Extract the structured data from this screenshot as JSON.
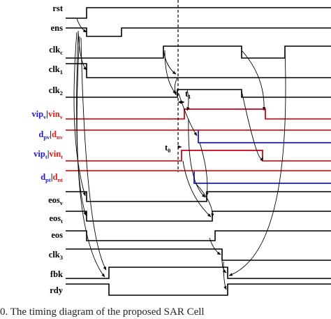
{
  "signals": [
    {
      "id": "rst",
      "label": [
        {
          "t": "rst",
          "c": "#000000"
        }
      ]
    },
    {
      "id": "ens",
      "label": [
        {
          "t": "ens",
          "c": "#000000"
        }
      ]
    },
    {
      "id": "clkc",
      "label": [
        {
          "t": "clk",
          "c": "#000000"
        },
        {
          "t": "c",
          "c": "#000000",
          "sub": true
        }
      ]
    },
    {
      "id": "clk1",
      "label": [
        {
          "t": "clk",
          "c": "#000000"
        },
        {
          "t": "1",
          "c": "#000000",
          "sub": true
        }
      ]
    },
    {
      "id": "clk2",
      "label": [
        {
          "t": "clk",
          "c": "#000000"
        },
        {
          "t": "2",
          "c": "#000000",
          "sub": true
        }
      ]
    },
    {
      "id": "vipv",
      "label": [
        {
          "t": "vip",
          "c": "#1a1adb"
        },
        {
          "t": "v",
          "c": "#1a1adb",
          "sub": true
        },
        {
          "t": "|",
          "c": "#000000"
        },
        {
          "t": "vin",
          "c": "#e01a1a"
        },
        {
          "t": "v",
          "c": "#e01a1a",
          "sub": true
        }
      ]
    },
    {
      "id": "dpv",
      "label": [
        {
          "t": "d",
          "c": "#1a1adb"
        },
        {
          "t": "pv",
          "c": "#1a1adb",
          "sub": true
        },
        {
          "t": "|",
          "c": "#000000"
        },
        {
          "t": "d",
          "c": "#e01a1a"
        },
        {
          "t": "nv",
          "c": "#e01a1a",
          "sub": true
        }
      ]
    },
    {
      "id": "vipt",
      "label": [
        {
          "t": "vip",
          "c": "#1a1adb"
        },
        {
          "t": "t",
          "c": "#1a1adb",
          "sub": true
        },
        {
          "t": "|",
          "c": "#000000"
        },
        {
          "t": "vin",
          "c": "#e01a1a"
        },
        {
          "t": "t",
          "c": "#e01a1a",
          "sub": true
        }
      ]
    },
    {
      "id": "dpt",
      "label": [
        {
          "t": "d",
          "c": "#1a1adb"
        },
        {
          "t": "pt",
          "c": "#1a1adb",
          "sub": true
        },
        {
          "t": "|",
          "c": "#000000"
        },
        {
          "t": "d",
          "c": "#e01a1a"
        },
        {
          "t": "nt",
          "c": "#e01a1a",
          "sub": true
        }
      ]
    },
    {
      "id": "eosv",
      "label": [
        {
          "t": "eos",
          "c": "#000000"
        },
        {
          "t": "v",
          "c": "#000000",
          "sub": true
        }
      ]
    },
    {
      "id": "eost",
      "label": [
        {
          "t": "eos",
          "c": "#000000"
        },
        {
          "t": "t",
          "c": "#000000",
          "sub": true
        }
      ]
    },
    {
      "id": "eos",
      "label": [
        {
          "t": "eos",
          "c": "#000000"
        }
      ]
    },
    {
      "id": "clk3",
      "label": [
        {
          "t": "clk",
          "c": "#000000"
        },
        {
          "t": "3",
          "c": "#000000",
          "sub": true
        }
      ]
    },
    {
      "id": "fbk",
      "label": [
        {
          "t": "fbk",
          "c": "#000000"
        }
      ]
    },
    {
      "id": "rdy",
      "label": [
        {
          "t": "rdy",
          "c": "#000000"
        }
      ]
    }
  ],
  "annotations": {
    "t0": [
      {
        "t": "t",
        "c": "#000000"
      },
      {
        "t": "0",
        "c": "#000000",
        "sub": true
      }
    ],
    "t1": [
      {
        "t": "t",
        "c": "#000000"
      },
      {
        "t": "1",
        "c": "#000000",
        "sub": true
      }
    ]
  },
  "colors": {
    "ink": "#000000",
    "blue": "#1a1adb",
    "red": "#e01a1a"
  },
  "caption": "0.   The timing diagram of the proposed SAR Cell"
}
